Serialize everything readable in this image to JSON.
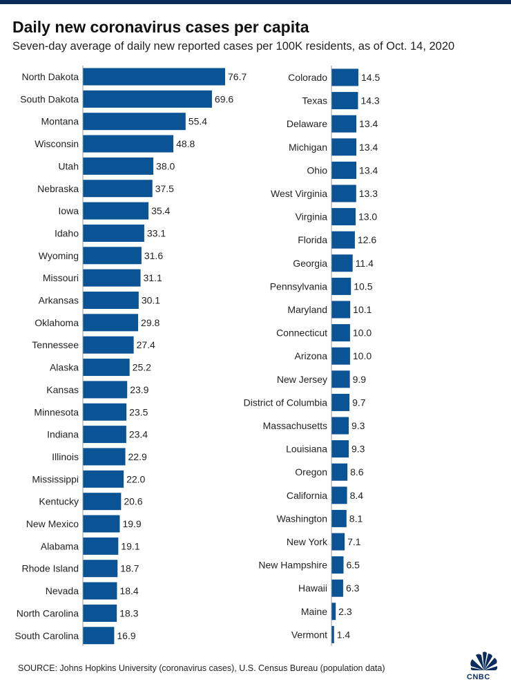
{
  "title": "Daily new coronavirus cases per capita",
  "subtitle": "Seven-day average of daily new reported cases per 100K residents, as of Oct. 14, 2020",
  "source": "SOURCE: Johns Hopkins University (coronavirus cases), U.S. Census Bureau (population data)",
  "logo": {
    "text": "CNBC",
    "icon": "peacock-logo-icon"
  },
  "colors": {
    "bar": "#0a5394",
    "axis": "#999999",
    "text": "#222222"
  },
  "chart_data": {
    "type": "bar",
    "orientation": "horizontal",
    "panels": [
      {
        "categories": [
          "North Dakota",
          "South Dakota",
          "Montana",
          "Wisconsin",
          "Utah",
          "Nebraska",
          "Iowa",
          "Idaho",
          "Wyoming",
          "Missouri",
          "Arkansas",
          "Oklahoma",
          "Tennessee",
          "Alaska",
          "Kansas",
          "Minnesota",
          "Indiana",
          "Illinois",
          "Mississippi",
          "Kentucky",
          "New Mexico",
          "Alabama",
          "Rhode Island",
          "Nevada",
          "North Carolina",
          "South Carolina"
        ],
        "values": [
          76.7,
          69.6,
          55.4,
          48.8,
          38.0,
          37.5,
          35.4,
          33.1,
          31.6,
          31.1,
          30.1,
          29.8,
          27.4,
          25.2,
          23.9,
          23.5,
          23.4,
          22.9,
          22.0,
          20.6,
          19.9,
          19.1,
          18.7,
          18.4,
          18.3,
          16.9
        ],
        "labels": [
          "76.7",
          "69.6",
          "55.4",
          "48.8",
          "38.0",
          "37.5",
          "35.4",
          "33.1",
          "31.6",
          "31.1",
          "30.1",
          "29.8",
          "27.4",
          "25.2",
          "23.9",
          "23.5",
          "23.4",
          "22.9",
          "22.0",
          "20.6",
          "19.9",
          "19.1",
          "18.7",
          "18.4",
          "18.3",
          "16.9"
        ]
      },
      {
        "categories": [
          "Colorado",
          "Texas",
          "Delaware",
          "Michigan",
          "Ohio",
          "West Virginia",
          "Virginia",
          "Florida",
          "Georgia",
          "Pennsylvania",
          "Maryland",
          "Connecticut",
          "Arizona",
          "New Jersey",
          "District of Columbia",
          "Massachusetts",
          "Louisiana",
          "Oregon",
          "California",
          "Washington",
          "New York",
          "New Hampshire",
          "Hawaii",
          "Maine",
          "Vermont"
        ],
        "values": [
          14.5,
          14.3,
          13.4,
          13.4,
          13.4,
          13.3,
          13.0,
          12.6,
          11.4,
          10.5,
          10.1,
          10.0,
          10.0,
          9.9,
          9.7,
          9.3,
          9.3,
          8.6,
          8.4,
          8.1,
          7.1,
          6.5,
          6.3,
          2.3,
          1.4
        ],
        "labels": [
          "14.5",
          "14.3",
          "13.4",
          "13.4",
          "13.4",
          "13.3",
          "13.0",
          "12.6",
          "11.4",
          "10.5",
          "10.1",
          "10.0",
          "10.0",
          "9.9",
          "9.7",
          "9.3",
          "9.3",
          "8.6",
          "8.4",
          "8.1",
          "7.1",
          "6.5",
          "6.3",
          "2.3",
          "1.4"
        ]
      }
    ],
    "grid": false,
    "legend": "none"
  }
}
